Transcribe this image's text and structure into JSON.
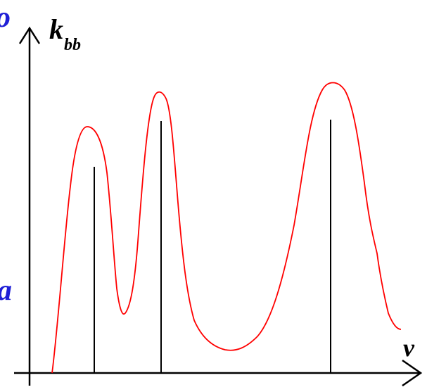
{
  "labels": {
    "top_letter": "o",
    "middle_letter": "a",
    "y_axis_main": "k",
    "y_axis_sub": "bb",
    "x_axis": "ν"
  },
  "colors": {
    "curve": "#ff0000",
    "axes": "#000000",
    "side_letters": "#1f1fd6"
  },
  "diagram": {
    "type": "absorption-spectrum-sketch",
    "peaks": 3,
    "vertical_lines": 3
  }
}
